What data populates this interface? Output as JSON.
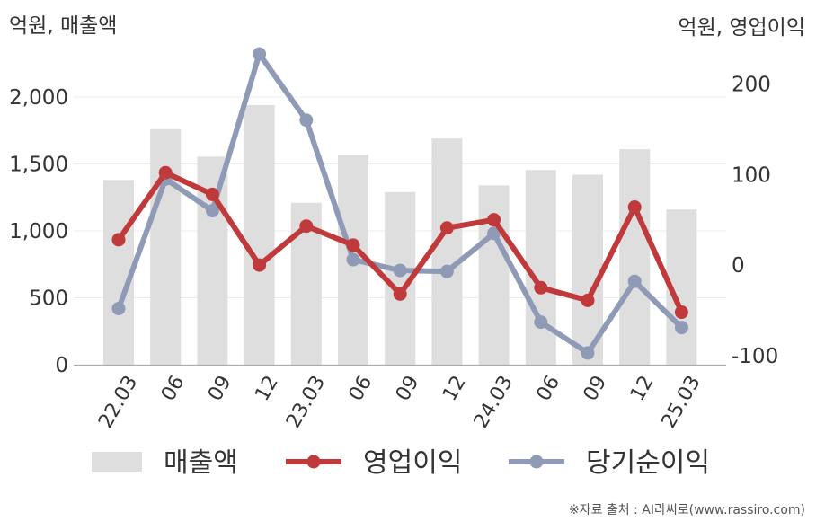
{
  "chart_data": {
    "type": "bar+line",
    "title": "",
    "left_axis_unit": "억원, 매출액",
    "right_axis_unit": "억원, 영업이익",
    "categories": [
      "22.03",
      "06",
      "09",
      "12",
      "23.03",
      "06",
      "09",
      "12",
      "24.03",
      "06",
      "09",
      "12",
      "25.03"
    ],
    "left_ylim": [
      0,
      2000
    ],
    "left_ticks": [
      "0",
      "500",
      "1,000",
      "1,500",
      "2,000"
    ],
    "right_ylim": [
      -110,
      250
    ],
    "right_ticks": [
      "-100",
      "0",
      "100",
      "200"
    ],
    "grid": true,
    "legend_position": "bottom",
    "series": [
      {
        "name": "매출액",
        "kind": "bar",
        "axis": "left",
        "color": "#dedede",
        "values": [
          1380,
          1760,
          1555,
          1940,
          1210,
          1570,
          1290,
          1690,
          1340,
          1455,
          1420,
          1610,
          1160
        ]
      },
      {
        "name": "영업이익",
        "kind": "line",
        "axis": "right",
        "color": "#c0393b",
        "values": [
          28,
          102,
          78,
          0,
          43,
          22,
          -32,
          41,
          50,
          -25,
          -39,
          64,
          -52
        ]
      },
      {
        "name": "당기순이익",
        "kind": "line",
        "axis": "right",
        "color": "#8f9bb6",
        "values": [
          -48,
          95,
          60,
          233,
          160,
          6,
          -6,
          -7,
          35,
          -63,
          -97,
          -18,
          -69
        ]
      }
    ]
  },
  "source": "※자료 출처 : AI라씨로(www.rassiro.com)"
}
